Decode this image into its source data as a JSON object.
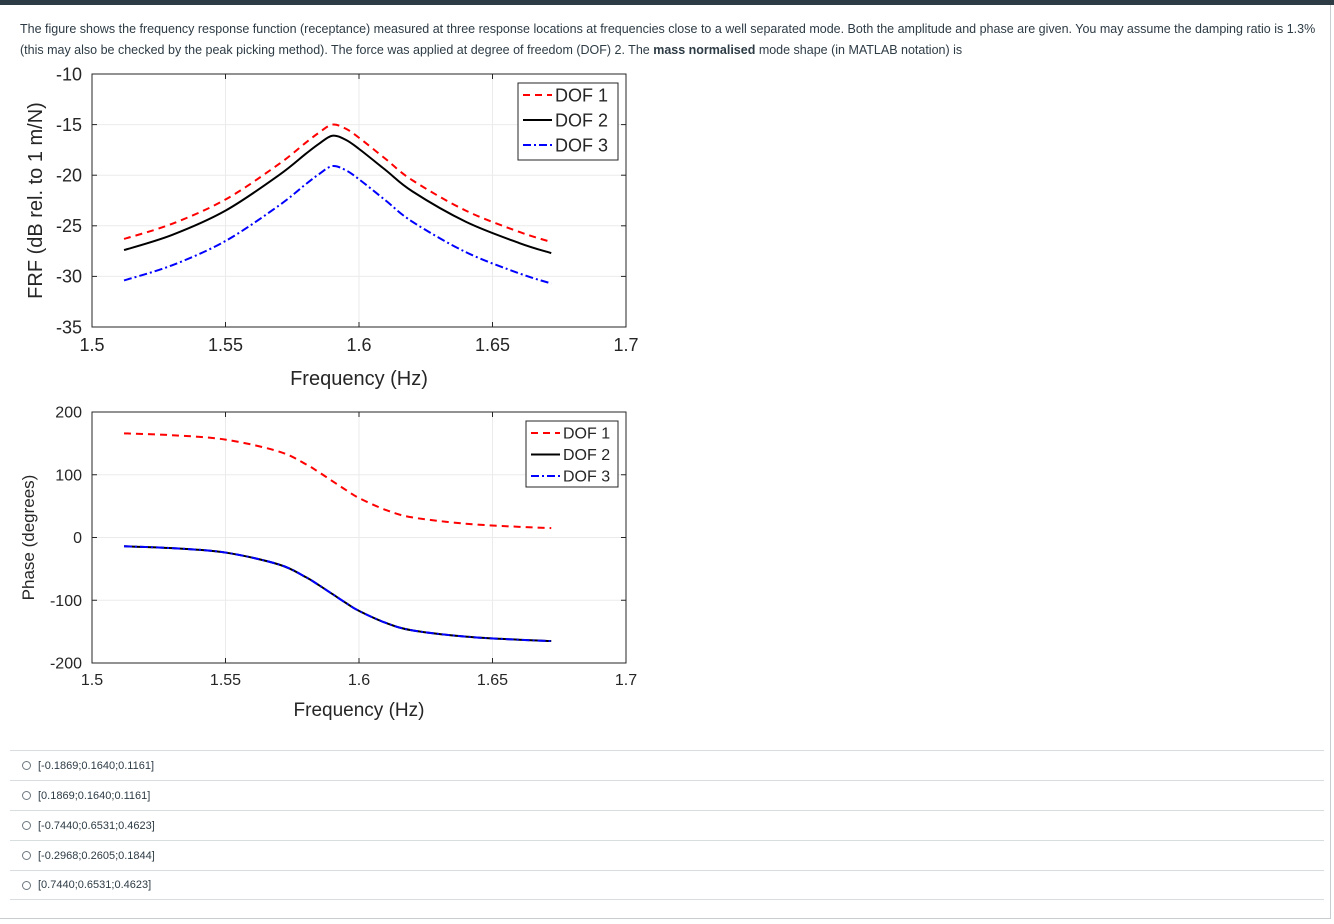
{
  "question": {
    "line1_part1": "The figure shows the frequency response function (receptance) measured at three response locations at frequencies close to a well separated mode. Both the amplitude and phase are given. You may assume the damping ratio is 1.3%",
    "line2_part1": "(this may also be checked by the peak picking method).  The force was applied at degree of freedom (DOF) 2. The ",
    "line2_bold": "mass normalised",
    "line2_part2": " mode shape (in MATLAB notation) is"
  },
  "chart_data": [
    {
      "type": "line",
      "xlabel": "Frequency (Hz)",
      "ylabel": "FRF (dB rel. to 1 m/N)",
      "xlim": [
        1.5,
        1.7
      ],
      "ylim": [
        -35,
        -10
      ],
      "xticks": [
        "1.5",
        "1.55",
        "1.6",
        "1.65",
        "1.7"
      ],
      "yticks": [
        "-10",
        "-15",
        "-20",
        "-25",
        "-30",
        "-35"
      ],
      "grid": true,
      "legend_position": "top-right",
      "x": [
        1.512,
        1.53,
        1.55,
        1.57,
        1.58,
        1.585,
        1.59,
        1.595,
        1.6,
        1.61,
        1.62,
        1.64,
        1.66,
        1.672
      ],
      "series": [
        {
          "name": "DOF 1",
          "color": "#ff0000",
          "dash": "dashed",
          "values": [
            -26.3,
            -24.8,
            -22.4,
            -18.9,
            -16.8,
            -15.8,
            -15.0,
            -15.4,
            -16.3,
            -18.4,
            -20.5,
            -23.5,
            -25.6,
            -26.6
          ]
        },
        {
          "name": "DOF 2",
          "color": "#000000",
          "dash": "solid",
          "values": [
            -27.4,
            -25.9,
            -23.5,
            -20.0,
            -17.9,
            -16.9,
            -16.1,
            -16.5,
            -17.4,
            -19.5,
            -21.6,
            -24.6,
            -26.7,
            -27.7
          ]
        },
        {
          "name": "DOF 3",
          "color": "#0000ff",
          "dash": "dashdot",
          "values": [
            -30.4,
            -28.9,
            -26.5,
            -23.0,
            -20.9,
            -19.9,
            -19.1,
            -19.5,
            -20.4,
            -22.5,
            -24.6,
            -27.6,
            -29.7,
            -30.7
          ]
        }
      ]
    },
    {
      "type": "line",
      "xlabel": "Frequency (Hz)",
      "ylabel": "Phase (degrees)",
      "xlim": [
        1.5,
        1.7
      ],
      "ylim": [
        -200,
        200
      ],
      "xticks": [
        "1.5",
        "1.55",
        "1.6",
        "1.65",
        "1.7"
      ],
      "yticks": [
        "200",
        "100",
        "0",
        "-100",
        "-200"
      ],
      "grid": true,
      "legend_position": "top-right",
      "x": [
        1.512,
        1.53,
        1.55,
        1.57,
        1.58,
        1.585,
        1.59,
        1.595,
        1.6,
        1.61,
        1.62,
        1.64,
        1.66,
        1.672
      ],
      "series": [
        {
          "name": "DOF 1",
          "color": "#ff0000",
          "dash": "dashed",
          "values": [
            166,
            163,
            156,
            137,
            117,
            104,
            90,
            76,
            63,
            44,
            32,
            22,
            17,
            15
          ]
        },
        {
          "name": "DOF 2",
          "color": "#000000",
          "dash": "solid",
          "values": [
            -14,
            -17,
            -24,
            -43,
            -63,
            -76,
            -90,
            -104,
            -117,
            -136,
            -148,
            -158,
            -163,
            -165
          ]
        },
        {
          "name": "DOF 3",
          "color": "#0000ff",
          "dash": "dashdot",
          "values": [
            -14,
            -17,
            -24,
            -43,
            -63,
            -76,
            -90,
            -104,
            -117,
            -136,
            -148,
            -158,
            -163,
            -165
          ]
        }
      ]
    }
  ],
  "answers": [
    {
      "label": "[-0.1869;0.1640;0.1161]"
    },
    {
      "label": "[0.1869;0.1640;0.1161]"
    },
    {
      "label": "[-0.7440;0.6531;0.4623]"
    },
    {
      "label": "[-0.2968;0.2605;0.1844]"
    },
    {
      "label": "[0.7440;0.6531;0.4623]"
    }
  ]
}
